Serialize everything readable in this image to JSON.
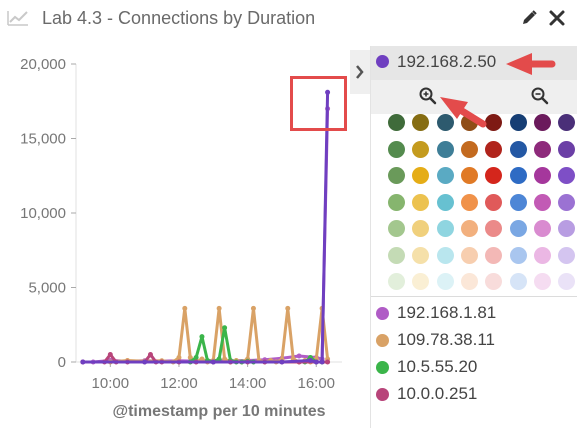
{
  "header": {
    "title": "Lab 4.3 - Connections by Duration"
  },
  "legend": {
    "selected": {
      "label": "192.168.2.50",
      "color": "#6f3fc0"
    },
    "swatch_colors": [
      [
        "#3f6b3a",
        "#866d13",
        "#2d5a6e",
        "#8f4d17",
        "#7e1a14",
        "#163e74",
        "#6b1a5c",
        "#4a2f78"
      ],
      [
        "#548b4e",
        "#c49b1e",
        "#3e7e97",
        "#c36a1f",
        "#b0241c",
        "#2458a4",
        "#8e2a7b",
        "#6b3fa6"
      ],
      [
        "#6a9a5a",
        "#e5ad17",
        "#5aaac3",
        "#e07a26",
        "#d4261c",
        "#2e6bc4",
        "#a5379c",
        "#7e4fc6"
      ],
      [
        "#86b56e",
        "#ecc24f",
        "#67c1d1",
        "#f0924a",
        "#e05a5a",
        "#4d86d6",
        "#c25ab5",
        "#9b72d3"
      ],
      [
        "#a3c78e",
        "#f0d07c",
        "#8fd5e0",
        "#f2b07e",
        "#eb8a89",
        "#7aa7e3",
        "#d98bd0",
        "#b89de2"
      ],
      [
        "#c4dbb5",
        "#f5e0a9",
        "#b9e6ee",
        "#f7ceaf",
        "#f3b8b6",
        "#a9c6ef",
        "#ebb7e4",
        "#d4c5f0"
      ],
      [
        "#e2efdb",
        "#faefd4",
        "#dcf2f6",
        "#fbe7d8",
        "#f8dcdb",
        "#d6e4f7",
        "#f5dcf1",
        "#eae2f7"
      ]
    ],
    "entries": [
      {
        "label": "192.168.1.81",
        "color": "#b05cc6"
      },
      {
        "label": "109.78.38.11",
        "color": "#d9a266"
      },
      {
        "label": "10.5.55.20",
        "color": "#3bb54a"
      },
      {
        "label": "10.0.0.251",
        "color": "#b8457a"
      }
    ]
  },
  "chart_data": {
    "type": "line",
    "xlabel": "@timestamp per 10 minutes",
    "ylabel": "",
    "x_ticks": [
      "10:00",
      "12:00",
      "14:00",
      "16:00"
    ],
    "y_ticks": [
      "0",
      "5,000",
      "10,000",
      "15,000",
      "20,000"
    ],
    "ylim": [
      0,
      20000
    ],
    "xlim_hours": [
      9.0,
      16.75
    ],
    "series": [
      {
        "name": "192.168.1.81",
        "color": "#b05cc6",
        "x": [
          9.2,
          9.5,
          10.0,
          10.5,
          11.0,
          11.5,
          12.0,
          12.5,
          13.0,
          13.5,
          14.0,
          14.5,
          15.0,
          15.5,
          16.0,
          16.17,
          16.33
        ],
        "y": [
          0,
          0,
          100,
          50,
          80,
          60,
          80,
          50,
          100,
          80,
          100,
          150,
          250,
          400,
          300,
          200,
          17000
        ]
      },
      {
        "name": "109.78.38.11",
        "color": "#d9a266",
        "x": [
          10.0,
          10.5,
          11.0,
          11.5,
          11.83,
          12.0,
          12.17,
          12.33,
          12.5,
          12.67,
          12.83,
          13.0,
          13.17,
          13.33,
          13.5,
          13.67,
          13.83,
          14.0,
          14.17,
          14.33,
          14.5,
          14.67,
          14.83,
          15.0,
          15.17,
          15.33,
          15.5,
          15.67,
          15.83,
          16.0,
          16.17,
          16.33
        ],
        "y": [
          0,
          100,
          50,
          80,
          0,
          300,
          3600,
          300,
          0,
          200,
          0,
          100,
          3600,
          200,
          0,
          100,
          0,
          200,
          3600,
          100,
          0,
          100,
          0,
          150,
          3600,
          200,
          0,
          100,
          0,
          200,
          3600,
          200
        ]
      },
      {
        "name": "10.5.55.20",
        "color": "#3bb54a",
        "x": [
          12.33,
          12.5,
          12.67,
          12.83,
          13.0,
          13.17,
          13.33,
          13.5,
          13.67,
          13.83,
          14.0,
          14.17,
          15.67,
          15.83,
          16.0,
          16.17
        ],
        "y": [
          0,
          300,
          1700,
          100,
          0,
          200,
          2300,
          100,
          0,
          0,
          50,
          0,
          0,
          300,
          0,
          0
        ]
      },
      {
        "name": "10.0.0.251",
        "color": "#b8457a",
        "x": [
          9.2,
          9.83,
          10.0,
          10.17,
          10.5,
          11.0,
          11.17,
          11.33,
          11.5,
          12.0,
          12.5,
          13.0,
          13.5,
          14.0,
          14.5,
          15.0,
          15.5,
          16.0,
          16.33
        ],
        "y": [
          0,
          0,
          500,
          0,
          0,
          0,
          500,
          0,
          0,
          0,
          0,
          0,
          0,
          0,
          0,
          0,
          0,
          0,
          0
        ]
      },
      {
        "name": "192.168.2.50",
        "color": "#6f3fc0",
        "x": [
          9.2,
          11.0,
          13.0,
          15.0,
          15.83,
          16.0,
          16.17,
          16.33
        ],
        "y": [
          0,
          0,
          0,
          0,
          100,
          0,
          0,
          18100
        ]
      }
    ]
  }
}
